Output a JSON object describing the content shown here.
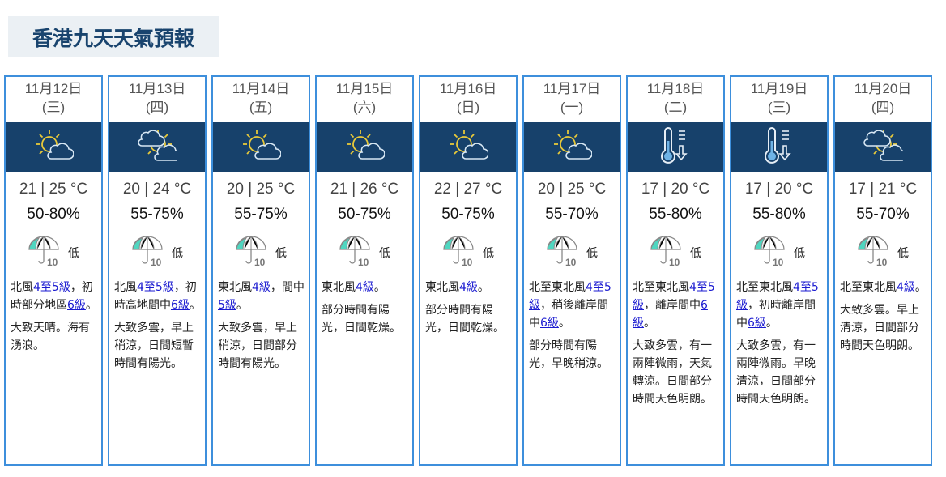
{
  "page_title": "香港九天天氣預報",
  "colors": {
    "band": "#17416b",
    "card_border": "#3d8fdc",
    "link": "#1a1ad0",
    "title": "#19446e"
  },
  "days": [
    {
      "date": "11月12日",
      "weekday": "(三)",
      "icon": "sun-cloud-icon",
      "temp": "21 | 25 °C",
      "rh": "50-80%",
      "psr": "低",
      "wind": [
        {
          "t": "北風"
        },
        {
          "t": "4至5級",
          "link": true
        },
        {
          "t": "，初時部分地區"
        },
        {
          "t": "6級",
          "link": true
        },
        {
          "t": "。"
        }
      ],
      "desc": "大致天晴。海有湧浪。"
    },
    {
      "date": "11月13日",
      "weekday": "(四)",
      "icon": "sun-cloud-cloud-icon",
      "temp": "20 | 24 °C",
      "rh": "55-75%",
      "psr": "低",
      "wind": [
        {
          "t": "北風"
        },
        {
          "t": "4至5級",
          "link": true
        },
        {
          "t": "，初時高地間中"
        },
        {
          "t": "6級",
          "link": true
        },
        {
          "t": "。"
        }
      ],
      "desc": "大致多雲，早上稍涼，日間短暫時間有陽光。"
    },
    {
      "date": "11月14日",
      "weekday": "(五)",
      "icon": "sun-cloud-icon",
      "temp": "20 | 25 °C",
      "rh": "55-75%",
      "psr": "低",
      "wind": [
        {
          "t": "東北風"
        },
        {
          "t": "4級",
          "link": true
        },
        {
          "t": "，間中"
        },
        {
          "t": "5級",
          "link": true
        },
        {
          "t": "。"
        }
      ],
      "desc": "大致多雲，早上稍涼，日間部分時間有陽光。"
    },
    {
      "date": "11月15日",
      "weekday": "(六)",
      "icon": "sun-cloud-icon",
      "temp": "21 | 26 °C",
      "rh": "50-75%",
      "psr": "低",
      "wind": [
        {
          "t": "東北風"
        },
        {
          "t": "4級",
          "link": true
        },
        {
          "t": "。"
        }
      ],
      "desc": "部分時間有陽光，日間乾燥。"
    },
    {
      "date": "11月16日",
      "weekday": "(日)",
      "icon": "sun-cloud-icon",
      "temp": "22 | 27 °C",
      "rh": "50-75%",
      "psr": "低",
      "wind": [
        {
          "t": "東北風"
        },
        {
          "t": "4級",
          "link": true
        },
        {
          "t": "。"
        }
      ],
      "desc": "部分時間有陽光，日間乾燥。"
    },
    {
      "date": "11月17日",
      "weekday": "(一)",
      "icon": "sun-cloud-icon",
      "temp": "20 | 25 °C",
      "rh": "55-70%",
      "psr": "低",
      "wind": [
        {
          "t": "北至東北風"
        },
        {
          "t": "4至5級",
          "link": true
        },
        {
          "t": "，稍後離岸間中"
        },
        {
          "t": "6級",
          "link": true
        },
        {
          "t": "。"
        }
      ],
      "desc": "部分時間有陽光，早晚稍涼。"
    },
    {
      "date": "11月18日",
      "weekday": "(二)",
      "icon": "cool-thermometer-icon",
      "temp": "17 | 20 °C",
      "rh": "55-80%",
      "psr": "低",
      "wind": [
        {
          "t": "北至東北風"
        },
        {
          "t": "4至5級",
          "link": true
        },
        {
          "t": "，離岸間中"
        },
        {
          "t": "6級",
          "link": true
        },
        {
          "t": "。"
        }
      ],
      "desc": "大致多雲，有一兩陣微雨，天氣轉涼。日間部分時間天色明朗。"
    },
    {
      "date": "11月19日",
      "weekday": "(三)",
      "icon": "cool-thermometer-icon",
      "temp": "17 | 20 °C",
      "rh": "55-80%",
      "psr": "低",
      "wind": [
        {
          "t": "北至東北風"
        },
        {
          "t": "4至5級",
          "link": true
        },
        {
          "t": "，初時離岸間中"
        },
        {
          "t": "6級",
          "link": true
        },
        {
          "t": "。"
        }
      ],
      "desc": "大致多雲，有一兩陣微雨。早晚清涼，日間部分時間天色明朗。"
    },
    {
      "date": "11月20日",
      "weekday": "(四)",
      "icon": "sun-cloud-cloud-icon",
      "temp": "17 | 21 °C",
      "rh": "55-70%",
      "psr": "低",
      "wind": [
        {
          "t": "北至東北風"
        },
        {
          "t": "4級",
          "link": true
        },
        {
          "t": "。"
        }
      ],
      "desc": "大致多雲。早上清涼，日間部分時間天色明朗。"
    }
  ]
}
